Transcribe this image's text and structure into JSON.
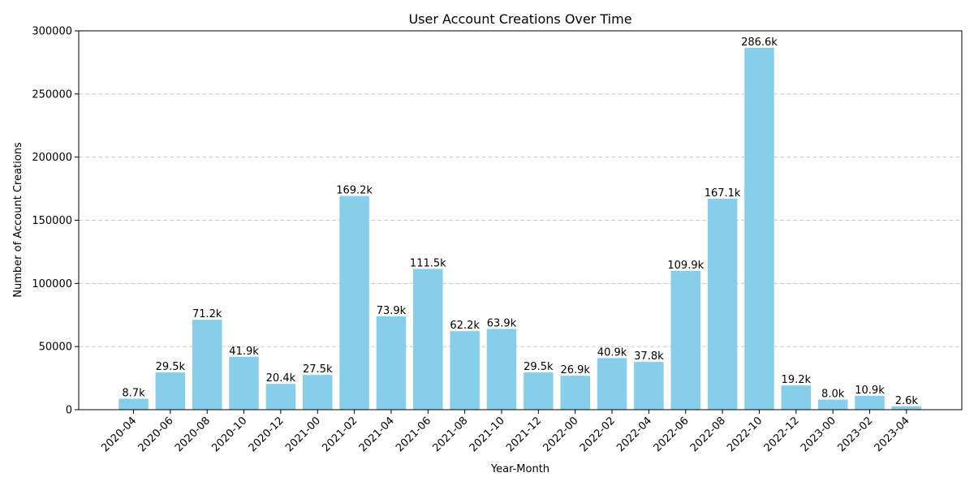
{
  "chart_data": {
    "type": "bar",
    "title": "User Account Creations Over Time",
    "xlabel": "Year-Month",
    "ylabel": "Number of Account Creations",
    "ylim": [
      0,
      300000
    ],
    "yticks": [
      0,
      50000,
      100000,
      150000,
      200000,
      250000,
      300000
    ],
    "ytick_labels": [
      "0",
      "50000",
      "100000",
      "150000",
      "200000",
      "250000",
      "300000"
    ],
    "grid": "y dashed",
    "bar_color": "#87CEEB",
    "categories": [
      "2020-04",
      "2020-06",
      "2020-08",
      "2020-10",
      "2020-12",
      "2021-00",
      "2021-02",
      "2021-04",
      "2021-06",
      "2021-08",
      "2021-10",
      "2021-12",
      "2022-00",
      "2022-02",
      "2022-04",
      "2022-06",
      "2022-08",
      "2022-10",
      "2022-12",
      "2023-00",
      "2023-02",
      "2023-04"
    ],
    "values": [
      8700,
      29500,
      71200,
      41900,
      20400,
      27500,
      169200,
      73900,
      111500,
      62200,
      63900,
      29500,
      26900,
      40900,
      37800,
      109900,
      167100,
      286600,
      19200,
      8000,
      10900,
      2600
    ],
    "value_labels": [
      "8.7k",
      "29.5k",
      "71.2k",
      "41.9k",
      "20.4k",
      "27.5k",
      "169.2k",
      "73.9k",
      "111.5k",
      "62.2k",
      "63.9k",
      "29.5k",
      "26.9k",
      "40.9k",
      "37.8k",
      "109.9k",
      "167.1k",
      "286.6k",
      "19.2k",
      "8.0k",
      "10.9k",
      "2.6k"
    ]
  }
}
